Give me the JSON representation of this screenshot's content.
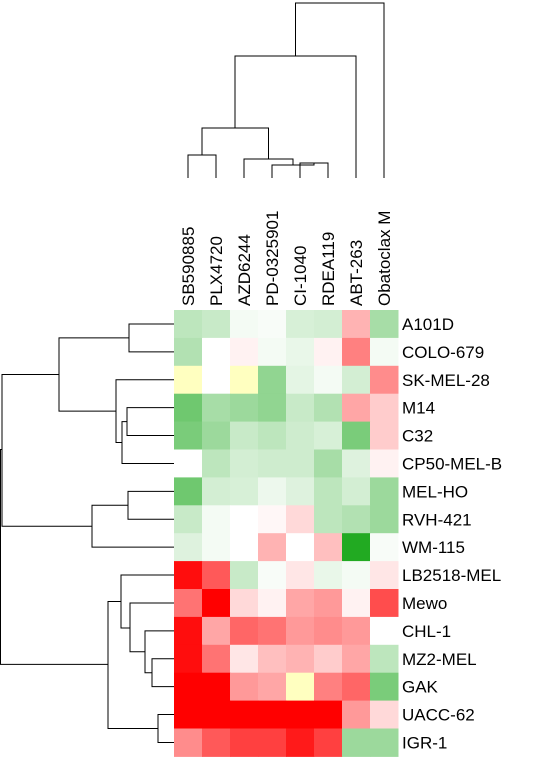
{
  "chart_data": {
    "type": "heatmap",
    "columns": [
      "SB590885",
      "PLX4720",
      "AZD6244",
      "PD-0325901",
      "CI-1040",
      "RDEA119",
      "ABT-263",
      "Obatoclax M"
    ],
    "rows": [
      "A101D",
      "COLO-679",
      "SK-MEL-28",
      "M14",
      "C32",
      "CP50-MEL-B",
      "MEL-HO",
      "RVH-421",
      "WM-115",
      "LB2518-MEL",
      "Mewo",
      "CHL-1",
      "MZ2-MEL",
      "GAK",
      "UACC-62",
      "IGR-1"
    ],
    "scale": {
      "low_color": "#ff0000",
      "mid_color": "#ffffff",
      "high_color": "#22aa22",
      "special_color": "#ffffc0",
      "range": [
        -1,
        1
      ]
    },
    "values": [
      [
        0.3,
        0.25,
        0.05,
        0.03,
        0.18,
        0.2,
        -0.3,
        0.4
      ],
      [
        0.35,
        0.0,
        -0.05,
        0.05,
        0.1,
        -0.05,
        -0.5,
        0.05
      ],
      [
        null,
        0.0,
        null,
        0.5,
        0.12,
        0.05,
        0.2,
        -0.45
      ],
      [
        0.65,
        0.4,
        0.45,
        0.5,
        0.25,
        0.35,
        -0.35,
        -0.2
      ],
      [
        0.6,
        0.45,
        0.25,
        0.3,
        0.22,
        0.18,
        0.6,
        -0.2
      ],
      [
        0.0,
        0.3,
        0.2,
        0.22,
        0.22,
        0.4,
        0.15,
        -0.05
      ],
      [
        0.65,
        0.2,
        0.18,
        0.08,
        0.15,
        0.3,
        0.2,
        0.45
      ],
      [
        0.25,
        0.05,
        0.0,
        -0.03,
        -0.15,
        0.3,
        0.35,
        0.45
      ],
      [
        0.15,
        0.05,
        0.0,
        -0.3,
        0.0,
        -0.25,
        1.0,
        0.03
      ],
      [
        -0.95,
        -0.65,
        0.25,
        0.03,
        -0.1,
        0.1,
        0.05,
        -0.1
      ],
      [
        -0.55,
        -1.0,
        -0.15,
        -0.05,
        -0.35,
        -0.4,
        -0.05,
        -0.7
      ],
      [
        -0.95,
        -0.35,
        -0.6,
        -0.55,
        -0.4,
        -0.45,
        -0.4,
        0.0
      ],
      [
        -0.95,
        -0.55,
        -0.1,
        -0.25,
        -0.3,
        -0.2,
        -0.35,
        0.3
      ],
      [
        -1.0,
        -1.0,
        -0.4,
        -0.35,
        null,
        -0.5,
        -0.6,
        0.6
      ],
      [
        -1.0,
        -1.0,
        -1.0,
        -1.0,
        -1.0,
        -1.0,
        -0.4,
        -0.15
      ],
      [
        -0.45,
        -0.65,
        -0.75,
        -0.75,
        -0.9,
        -0.75,
        0.45,
        0.45
      ]
    ],
    "column_dendrogram": true,
    "row_dendrogram": true,
    "grid": false,
    "legend": "none"
  }
}
